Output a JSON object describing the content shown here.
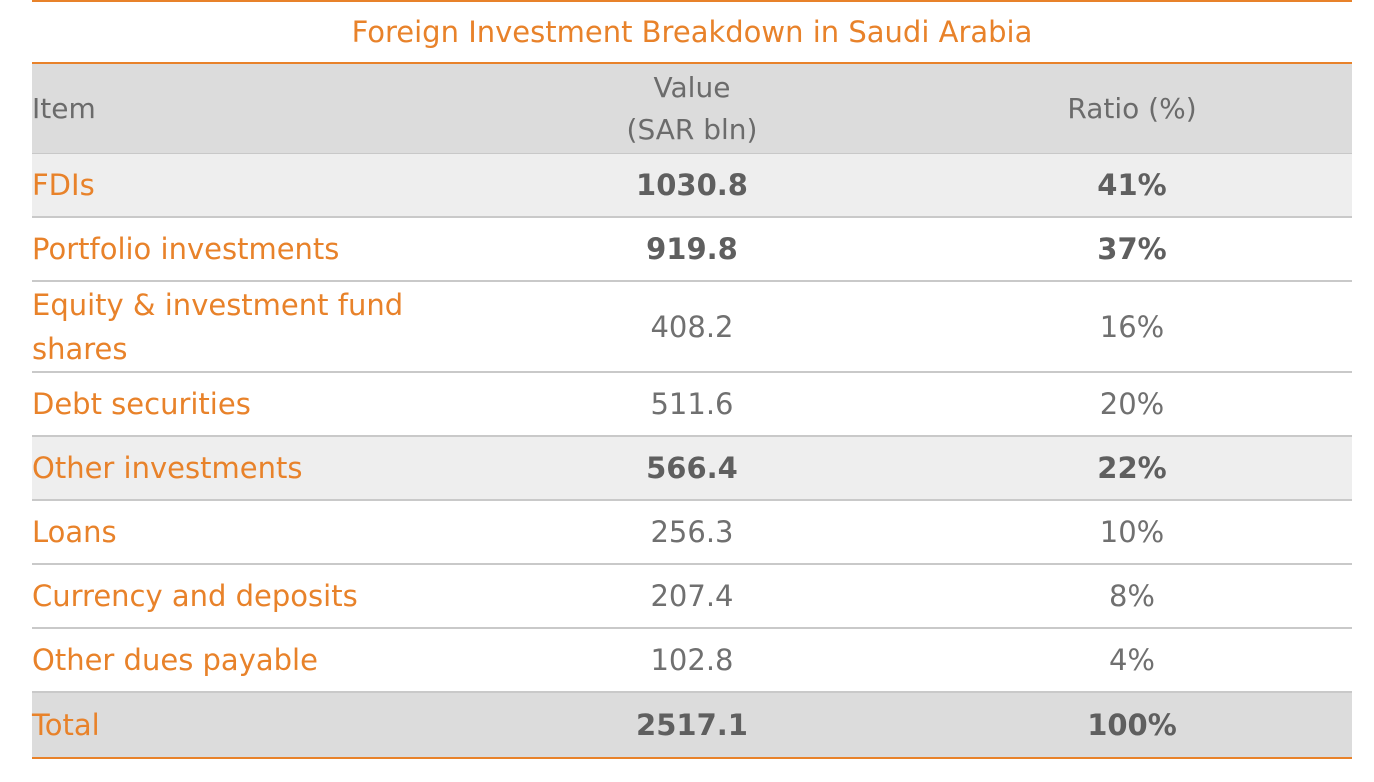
{
  "title": "Foreign Investment Breakdown in Saudi Arabia",
  "headers": {
    "item": "Item",
    "value_line1": "Value",
    "value_line2": "(SAR bln)",
    "ratio": "Ratio (%)"
  },
  "rows": [
    {
      "item": "FDIs",
      "value": "1030.8",
      "ratio": "41%"
    },
    {
      "item": "Portfolio investments",
      "value": "919.8",
      "ratio": "37%"
    },
    {
      "item_line1": "Equity & investment fund",
      "item_line2": "shares",
      "value": "408.2",
      "ratio": "16%"
    },
    {
      "item": "Debt securities",
      "value": "511.6",
      "ratio": "20%"
    },
    {
      "item": "Other investments",
      "value": "566.4",
      "ratio": "22%"
    },
    {
      "item": "Loans",
      "value": "256.3",
      "ratio": "10%"
    },
    {
      "item": "Currency and deposits",
      "value": "207.4",
      "ratio": "8%"
    },
    {
      "item": "Other dues payable",
      "value": "102.8",
      "ratio": "4%"
    }
  ],
  "total": {
    "item": "Total",
    "value": "2517.1",
    "ratio": "100%"
  },
  "colors": {
    "accent": "#e8822a",
    "header_bg": "#dcdcdc",
    "shaded_bg": "#eeeeee",
    "text_gray": "#707070"
  }
}
